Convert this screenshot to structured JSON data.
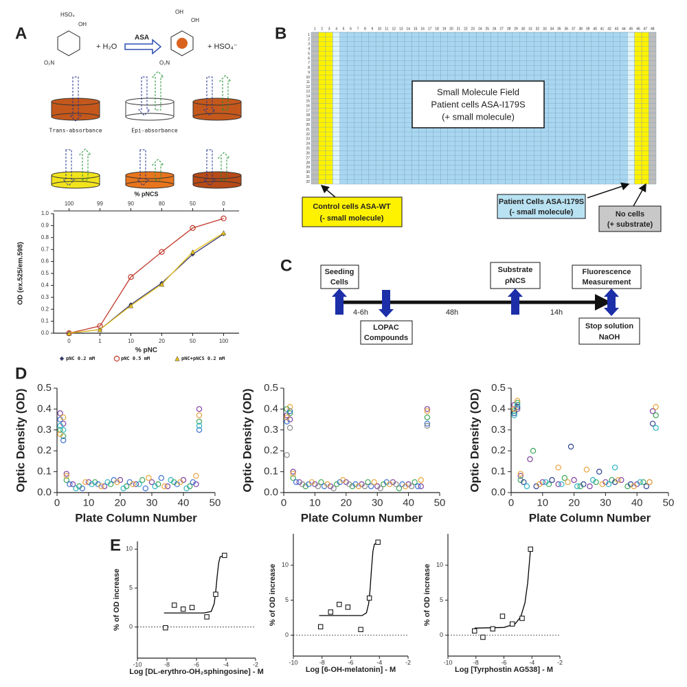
{
  "panel_labels": [
    "A",
    "B",
    "C",
    "D",
    "E"
  ],
  "panel_a": {
    "reactant": [
      "HSO₄",
      "OH",
      "O₂N"
    ],
    "water": "+ H₂O",
    "enzyme": "ASA",
    "product": [
      "OH",
      "OH",
      "O₂N"
    ],
    "sulfate": "+ HSO₄⁻",
    "trans": "Trans-absorbance",
    "epi": "Epi-absorbance"
  },
  "panel_b": {
    "columns": [
      1,
      2,
      3,
      4,
      5,
      6,
      7,
      8,
      9,
      10,
      11,
      12,
      13,
      14,
      15,
      16,
      17,
      18,
      19,
      20,
      21,
      22,
      23,
      24,
      25,
      26,
      27,
      28,
      29,
      30,
      31,
      32,
      33,
      34,
      35,
      36,
      37,
      38,
      39,
      40,
      41,
      42,
      43,
      44,
      45,
      46,
      47,
      48
    ],
    "rows": [
      1,
      2,
      3,
      4,
      5,
      6,
      7,
      8,
      9,
      10,
      11,
      12,
      13,
      14,
      15,
      16,
      17,
      18,
      19,
      20,
      21,
      22,
      23,
      24,
      25,
      26,
      27,
      28,
      29,
      30,
      31,
      32
    ],
    "field": [
      "Small Molecule Field",
      "Patient cells ASA-I179S",
      "(+ small molecule)"
    ],
    "control": [
      "Control cells ASA-WT",
      "(-  small molecule)"
    ],
    "patient": [
      "Patient Cells ASA-I179S",
      "(-  small molecule)"
    ],
    "empty": [
      "No cells",
      "(+ substrate)"
    ]
  },
  "panel_c": {
    "seeding": [
      "Seeding",
      "Cells"
    ],
    "lopac": [
      "LOPAC",
      "Compounds"
    ],
    "substrate": [
      "Substrate",
      "ρNCS"
    ],
    "fluorescence": [
      "Fluorescence",
      "Measurement"
    ],
    "stop": [
      "Stop solution",
      "NaOH"
    ],
    "intervals": [
      "4-6h",
      "48h",
      "14h"
    ]
  },
  "chart_data": [
    {
      "type": "line",
      "categories": [
        0,
        1,
        10,
        20,
        50,
        100
      ],
      "top_categories": [
        100,
        99,
        90,
        80,
        50,
        0
      ],
      "top_axis_label": "% pNCS",
      "x_label": "% pNC",
      "y_label": "OD (ex.525/em.598)",
      "legend": true,
      "ylim": [
        0,
        1
      ],
      "yticks": [
        {
          "value": 0,
          "label": "0.0"
        },
        0.1,
        0.2,
        0.3,
        0.4,
        0.5,
        0.6,
        0.7,
        0.8,
        0.9,
        {
          "value": 1,
          "label": "1.0"
        }
      ],
      "series": [
        {
          "name": "pNC  0.2 mM",
          "color": "#3a3a6a",
          "marker": "diamond",
          "values": [
            0,
            0.03,
            0.24,
            0.42,
            0.66,
            0.83
          ]
        },
        {
          "name": "pNC  0.5 mM",
          "color": "#c0392b",
          "marker": "circle",
          "values": [
            0,
            0.06,
            0.47,
            0.68,
            0.88,
            0.96
          ]
        },
        {
          "name": "pNC+pNCS  0.2 mM",
          "color": "#e8c21a",
          "marker": "triangle",
          "values": [
            0,
            0.03,
            0.23,
            0.41,
            0.68,
            0.84
          ]
        }
      ]
    },
    {
      "type": "scatter",
      "x_label": "Plate Column Number",
      "y_label": "Optic Density (OD)",
      "xlim": [
        0,
        50
      ],
      "xticks": [
        0,
        10,
        20,
        30,
        40,
        50
      ],
      "ylim": [
        0,
        0.5
      ],
      "yticks": [
        {
          "value": 0,
          "label": "0.0"
        },
        0.1,
        0.2,
        0.3,
        0.4,
        0.5
      ],
      "series": [
        {
          "color": "#7b3f9e",
          "marker": "circle",
          "x": [
            1,
            2,
            3,
            5,
            10,
            15,
            20,
            25,
            30,
            35,
            40,
            44,
            45
          ],
          "values": [
            0.38,
            0.33,
            0.09,
            0.04,
            0.05,
            0.03,
            0.06,
            0.04,
            0.05,
            0.03,
            0.06,
            0.04,
            0.4
          ]
        },
        {
          "color": "#3aa655",
          "marker": "circle",
          "x": [
            1,
            2,
            3,
            7,
            12,
            17,
            22,
            27,
            32,
            37,
            42,
            45
          ],
          "values": [
            0.3,
            0.27,
            0.06,
            0.03,
            0.05,
            0.04,
            0.03,
            0.06,
            0.04,
            0.05,
            0.03,
            0.34
          ]
        },
        {
          "color": "#3a6fd0",
          "marker": "circle",
          "x": [
            1,
            2,
            4,
            8,
            13,
            18,
            23,
            28,
            33,
            38,
            43,
            45
          ],
          "values": [
            0.35,
            0.25,
            0.04,
            0.02,
            0.04,
            0.06,
            0.05,
            0.02,
            0.07,
            0.04,
            0.05,
            0.3
          ]
        },
        {
          "color": "#e8a33a",
          "marker": "circle",
          "x": [
            1,
            2,
            3,
            9,
            14,
            19,
            24,
            29,
            34,
            39,
            44,
            45
          ],
          "values": [
            0.28,
            0.36,
            0.08,
            0.05,
            0.03,
            0.05,
            0.04,
            0.07,
            0.03,
            0.05,
            0.08,
            0.37
          ]
        },
        {
          "color": "#2bb4c4",
          "marker": "circle",
          "x": [
            1,
            2,
            6,
            11,
            16,
            21,
            26,
            31,
            36,
            41,
            45
          ],
          "values": [
            0.32,
            0.3,
            0.02,
            0.04,
            0.05,
            0.02,
            0.04,
            0.03,
            0.06,
            0.02,
            0.32
          ]
        }
      ]
    },
    {
      "type": "scatter",
      "x_label": "Plate Column Number",
      "y_label": "Optic Density (OD)",
      "xlim": [
        0,
        50
      ],
      "xticks": [
        0,
        10,
        20,
        30,
        40,
        50
      ],
      "ylim": [
        0,
        0.5
      ],
      "yticks": [
        {
          "value": 0,
          "label": "0.0"
        },
        0.1,
        0.2,
        0.3,
        0.4,
        0.5
      ],
      "series": [
        {
          "color": "#7b3f9e",
          "marker": "circle",
          "x": [
            1,
            2,
            3,
            5,
            10,
            15,
            20,
            25,
            30,
            35,
            40,
            44,
            46
          ],
          "values": [
            0.37,
            0.35,
            0.1,
            0.05,
            0.04,
            0.03,
            0.05,
            0.04,
            0.03,
            0.05,
            0.04,
            0.03,
            0.4
          ]
        },
        {
          "color": "#3aa655",
          "marker": "circle",
          "x": [
            1,
            2,
            3,
            7,
            12,
            17,
            22,
            27,
            32,
            37,
            42,
            46
          ],
          "values": [
            0.4,
            0.38,
            0.07,
            0.03,
            0.05,
            0.04,
            0.03,
            0.05,
            0.04,
            0.02,
            0.05,
            0.36
          ]
        },
        {
          "color": "#3a6fd0",
          "marker": "circle",
          "x": [
            1,
            2,
            4,
            8,
            13,
            18,
            23,
            28,
            33,
            38,
            43,
            46
          ],
          "values": [
            0.34,
            0.39,
            0.05,
            0.04,
            0.03,
            0.05,
            0.04,
            0.03,
            0.05,
            0.04,
            0.03,
            0.33
          ]
        },
        {
          "color": "#e8a33a",
          "marker": "circle",
          "x": [
            1,
            2,
            3,
            9,
            14,
            19,
            24,
            29,
            34,
            39,
            44,
            46
          ],
          "values": [
            0.36,
            0.41,
            0.09,
            0.05,
            0.04,
            0.06,
            0.03,
            0.05,
            0.04,
            0.03,
            0.06,
            0.39
          ]
        },
        {
          "color": "#888888",
          "marker": "circle",
          "x": [
            1,
            2,
            6,
            11,
            16,
            21,
            26,
            31,
            36,
            41,
            46
          ],
          "values": [
            0.18,
            0.31,
            0.04,
            0.03,
            0.02,
            0.04,
            0.03,
            0.02,
            0.04,
            0.03,
            0.32
          ]
        }
      ]
    },
    {
      "type": "scatter",
      "x_label": "Plate Column Number",
      "y_label": "Optic Density (OD)",
      "xlim": [
        0,
        50
      ],
      "xticks": [
        0,
        10,
        20,
        30,
        40,
        50
      ],
      "ylim": [
        0,
        0.5
      ],
      "yticks": [
        {
          "value": 0,
          "label": "0.0"
        },
        0.1,
        0.2,
        0.3,
        0.4,
        0.5
      ],
      "series": [
        {
          "color": "#7b3f9e",
          "marker": "circle",
          "x": [
            1,
            2,
            3,
            6,
            10,
            15,
            20,
            25,
            30,
            35,
            40,
            44,
            45
          ],
          "values": [
            0.42,
            0.4,
            0.08,
            0.16,
            0.05,
            0.04,
            0.06,
            0.03,
            0.05,
            0.06,
            0.04,
            0.05,
            0.39
          ]
        },
        {
          "color": "#3aa655",
          "marker": "circle",
          "x": [
            1,
            2,
            3,
            7,
            12,
            17,
            22,
            27,
            32,
            37,
            42,
            46
          ],
          "values": [
            0.39,
            0.43,
            0.06,
            0.2,
            0.04,
            0.07,
            0.03,
            0.05,
            0.06,
            0.03,
            0.05,
            0.37
          ]
        },
        {
          "color": "#2a3f8f",
          "marker": "circle",
          "x": [
            1,
            2,
            4,
            8,
            13,
            19,
            23,
            28,
            33,
            38,
            43,
            45
          ],
          "values": [
            0.38,
            0.41,
            0.05,
            0.03,
            0.06,
            0.22,
            0.04,
            0.1,
            0.05,
            0.04,
            0.03,
            0.33
          ]
        },
        {
          "color": "#e8a33a",
          "marker": "circle",
          "x": [
            1,
            2,
            3,
            9,
            15,
            18,
            24,
            29,
            34,
            39,
            44,
            46
          ],
          "values": [
            0.4,
            0.44,
            0.09,
            0.04,
            0.12,
            0.05,
            0.11,
            0.04,
            0.06,
            0.03,
            0.05,
            0.41
          ]
        },
        {
          "color": "#2bb4c4",
          "marker": "circle",
          "x": [
            1,
            2,
            5,
            11,
            16,
            21,
            26,
            31,
            33,
            41,
            46
          ],
          "values": [
            0.37,
            0.42,
            0.03,
            0.05,
            0.04,
            0.03,
            0.06,
            0.04,
            0.12,
            0.05,
            0.31
          ]
        }
      ]
    },
    {
      "type": "scatter",
      "x_label": "Log [DL-erythro-OH₂sphingosine] - M",
      "y_label": "% of OD increase",
      "xlim": [
        -10,
        -2
      ],
      "xticks": [
        -10,
        -8,
        -6,
        -4,
        -2
      ],
      "ylim": [
        -4,
        11
      ],
      "yticks": [
        0,
        5,
        10
      ],
      "zero_line": true,
      "series": [
        {
          "color": "#000000",
          "marker": "square",
          "x": [
            -8.1,
            -7.5,
            -6.9,
            -6.3,
            -5.3,
            -4.7,
            -4.1
          ],
          "values": [
            -0.1,
            2.8,
            2.3,
            2.5,
            1.3,
            4.2,
            9.2
          ]
        }
      ],
      "curve": {
        "x": [
          -8.2,
          -5.5,
          -5.0,
          -4.8,
          -4.7,
          -4.6,
          -4.5,
          -4.4,
          -4.1
        ],
        "values": [
          1.8,
          1.8,
          2.0,
          3.0,
          4.5,
          6.5,
          8.2,
          9.0,
          9.2
        ]
      }
    },
    {
      "type": "scatter",
      "x_label": "Log [6-OH-melatonin] - M",
      "y_label": "% of OD increase",
      "xlim": [
        -10,
        -2
      ],
      "xticks": [
        -10,
        -8,
        -6,
        -4,
        -2
      ],
      "ylim": [
        -3,
        14.5
      ],
      "yticks": [
        0,
        5,
        10
      ],
      "zero_line": true,
      "series": [
        {
          "color": "#000000",
          "marker": "square",
          "x": [
            -8.1,
            -7.4,
            -6.8,
            -6.2,
            -5.3,
            -4.7,
            -4.1
          ],
          "values": [
            1.2,
            3.3,
            4.4,
            4.0,
            0.8,
            5.3,
            13.3
          ]
        }
      ],
      "curve": {
        "x": [
          -8.2,
          -5.2,
          -4.9,
          -4.75,
          -4.65,
          -4.55,
          -4.45,
          -4.35,
          -4.1
        ],
        "values": [
          2.8,
          2.8,
          3.2,
          4.5,
          6.5,
          9.5,
          12,
          13,
          13.3
        ]
      }
    },
    {
      "type": "scatter",
      "x_label": "Log [Tyrphostin AG538] - M",
      "y_label": "% of OD increase",
      "xlim": [
        -10,
        -2
      ],
      "xticks": [
        -10,
        -8,
        -6,
        -4,
        -2
      ],
      "ylim": [
        -3,
        14.5
      ],
      "yticks": [
        0,
        5,
        10
      ],
      "zero_line": true,
      "series": [
        {
          "color": "#000000",
          "marker": "square",
          "x": [
            -8.1,
            -7.5,
            -6.8,
            -6.1,
            -5.4,
            -4.7,
            -4.1
          ],
          "values": [
            0.6,
            -0.3,
            0.9,
            2.7,
            1.6,
            2.4,
            12.3
          ]
        }
      ],
      "curve": {
        "x": [
          -8.1,
          -6,
          -5.2,
          -4.8,
          -4.5,
          -4.3,
          -4.1
        ],
        "values": [
          1.0,
          1.1,
          1.6,
          2.6,
          4.6,
          7.5,
          12.3
        ]
      }
    }
  ]
}
